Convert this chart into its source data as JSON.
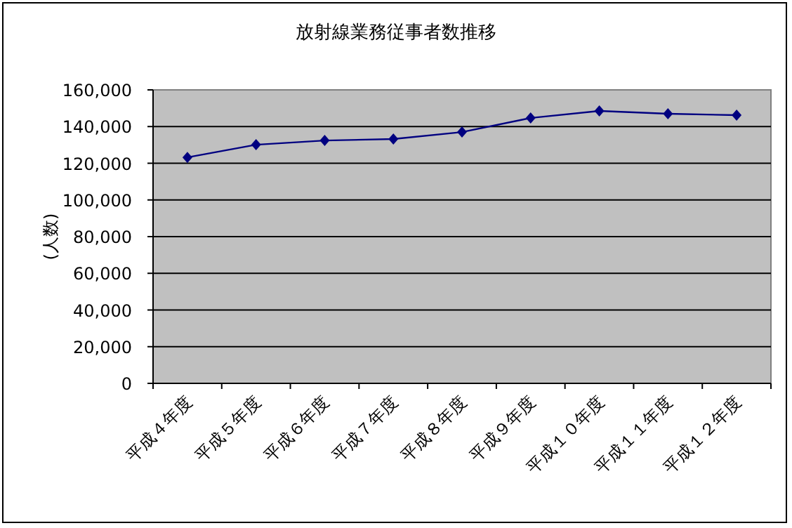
{
  "chart_data": {
    "type": "line",
    "title": "放射線業務従事者数推移",
    "ylabel": "(人数)",
    "categories": [
      "平成４年度",
      "平成５年度",
      "平成６年度",
      "平成７年度",
      "平成８年度",
      "平成９年度",
      "平成１０年度",
      "平成１１年度",
      "平成１２年度"
    ],
    "values": [
      123200,
      130100,
      132400,
      133200,
      137000,
      144700,
      148500,
      147000,
      146200
    ],
    "color": "#000080",
    "marker": "diamond",
    "ylim": [
      0,
      160000
    ],
    "yticks": [
      {
        "value": 0,
        "label": "0"
      },
      {
        "value": 20000,
        "label": "20,000"
      },
      {
        "value": 40000,
        "label": "40,000"
      },
      {
        "value": 60000,
        "label": "60,000"
      },
      {
        "value": 80000,
        "label": "80,000"
      },
      {
        "value": 100000,
        "label": "100,000"
      },
      {
        "value": 120000,
        "label": "120,000"
      },
      {
        "value": 140000,
        "label": "140,000"
      },
      {
        "value": 160000,
        "label": "160,000"
      }
    ],
    "grid": "y"
  }
}
